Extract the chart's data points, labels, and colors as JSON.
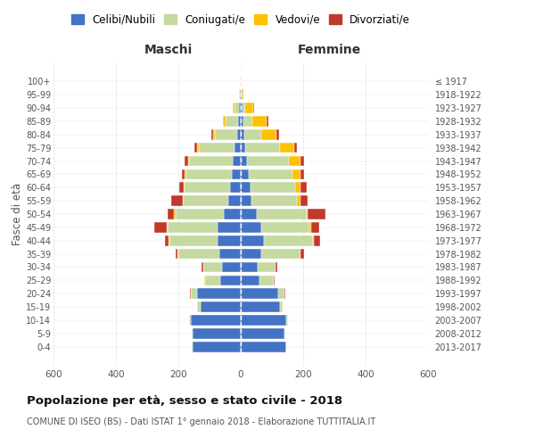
{
  "age_groups": [
    "0-4",
    "5-9",
    "10-14",
    "15-19",
    "20-24",
    "25-29",
    "30-34",
    "35-39",
    "40-44",
    "45-49",
    "50-54",
    "55-59",
    "60-64",
    "65-69",
    "70-74",
    "75-79",
    "80-84",
    "85-89",
    "90-94",
    "95-99",
    "100+"
  ],
  "birth_years": [
    "2013-2017",
    "2008-2012",
    "2003-2007",
    "1998-2002",
    "1993-1997",
    "1988-1992",
    "1983-1987",
    "1978-1982",
    "1973-1977",
    "1968-1972",
    "1963-1967",
    "1958-1962",
    "1953-1957",
    "1948-1952",
    "1943-1947",
    "1938-1942",
    "1933-1937",
    "1928-1932",
    "1923-1927",
    "1918-1922",
    "≤ 1917"
  ],
  "maschi": {
    "celibi": [
      155,
      155,
      160,
      130,
      140,
      65,
      60,
      70,
      75,
      75,
      55,
      40,
      35,
      30,
      25,
      20,
      12,
      8,
      5,
      2,
      1
    ],
    "coniugati": [
      2,
      2,
      5,
      10,
      20,
      50,
      60,
      130,
      155,
      160,
      155,
      145,
      145,
      145,
      140,
      115,
      70,
      40,
      15,
      3,
      1
    ],
    "vedovi": [
      0,
      0,
      0,
      0,
      1,
      1,
      1,
      2,
      2,
      3,
      3,
      2,
      3,
      5,
      5,
      5,
      8,
      10,
      5,
      1,
      0
    ],
    "divorziati": [
      0,
      0,
      0,
      0,
      1,
      2,
      5,
      8,
      10,
      40,
      20,
      35,
      15,
      10,
      10,
      8,
      5,
      0,
      0,
      0,
      0
    ]
  },
  "femmine": {
    "nubili": [
      145,
      140,
      145,
      125,
      120,
      60,
      55,
      65,
      75,
      65,
      50,
      35,
      30,
      25,
      20,
      15,
      10,
      8,
      5,
      2,
      1
    ],
    "coniugate": [
      2,
      2,
      5,
      8,
      20,
      45,
      55,
      125,
      155,
      155,
      160,
      145,
      145,
      140,
      135,
      110,
      55,
      30,
      10,
      2,
      0
    ],
    "vedove": [
      0,
      0,
      0,
      0,
      1,
      1,
      2,
      2,
      3,
      5,
      5,
      10,
      15,
      25,
      35,
      45,
      50,
      45,
      25,
      5,
      1
    ],
    "divorziate": [
      0,
      0,
      0,
      0,
      2,
      2,
      5,
      10,
      20,
      25,
      55,
      25,
      20,
      12,
      12,
      10,
      8,
      5,
      2,
      0,
      0
    ]
  },
  "colors": {
    "celibi": "#4472c4",
    "coniugati": "#c5d9a0",
    "vedovi": "#ffc000",
    "divorziati": "#c0392b"
  },
  "xlim": 600,
  "xlabel_left": "Maschi",
  "xlabel_right": "Femmine",
  "ylabel_left": "Fasce di età",
  "title": "Popolazione per età, sesso e stato civile - 2018",
  "subtitle": "COMUNE DI ISEO (BS) - Dati ISTAT 1° gennaio 2018 - Elaborazione TUTTITALIA.IT",
  "legend_labels": [
    "Celibi/Nubili",
    "Coniugati/e",
    "Vedovi/e",
    "Divorziati/e"
  ],
  "bg_color": "#ffffff",
  "grid_color": "#cccccc"
}
